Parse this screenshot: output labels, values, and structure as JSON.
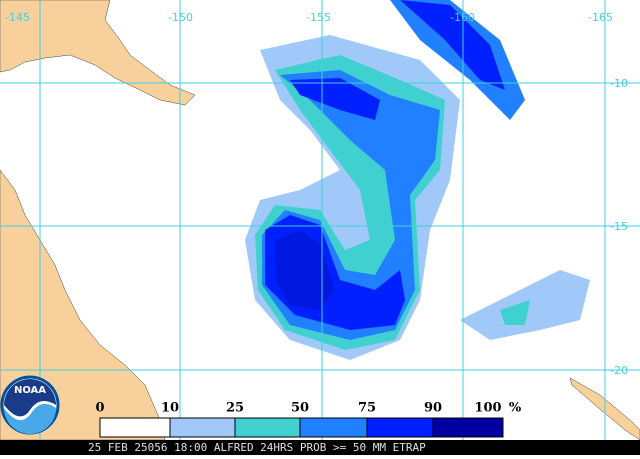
{
  "header": {
    "longitudes": [
      "-145",
      "-150",
      "-155",
      "-160",
      "-165"
    ],
    "latitudes": [
      "-10",
      "-15",
      "-20"
    ]
  },
  "legend": {
    "labels": [
      "0",
      "10",
      "25",
      "50",
      "75",
      "90",
      "100"
    ],
    "unit": "%"
  },
  "logo": "NOAA",
  "footer": "25 FEB 25056 18:00 ALFRED 24HRS PROB >= 50 MM ETRAP"
}
